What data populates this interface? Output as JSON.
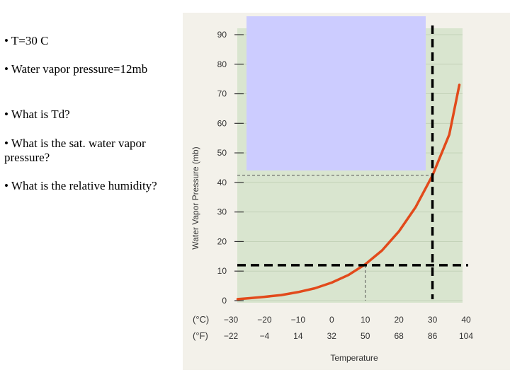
{
  "slide": {
    "bullets": [
      "• T=30 C",
      "• Water vapor pressure=12mb",
      "• What is Td?",
      "• What is the sat. water vapor pressure?",
      "• What is the relative humidity?"
    ]
  },
  "chart_data": {
    "type": "line",
    "ylabel": "Water Vapor Pressure (mb)",
    "xlabel": "Temperature",
    "celsius_unit_label": "(°C)",
    "fahrenheit_unit_label": "(°F)",
    "xlim": [
      -30,
      40
    ],
    "ylim": [
      0,
      90
    ],
    "yticks": [
      "0",
      "10",
      "20",
      "30",
      "40",
      "50",
      "60",
      "70",
      "80",
      "90"
    ],
    "xticks_c": [
      "−30",
      "−20",
      "−10",
      "0",
      "10",
      "20",
      "30",
      "40"
    ],
    "xticks_f": [
      "−22",
      "−4",
      "14",
      "32",
      "50",
      "68",
      "86",
      "104"
    ],
    "series": [
      {
        "x": [
          -28,
          -25,
          -20,
          -15,
          -10,
          -5,
          0,
          5,
          10,
          15,
          20,
          25,
          30,
          35,
          38
        ],
        "y": [
          0.5,
          0.8,
          1.3,
          1.9,
          2.9,
          4.2,
          6.1,
          8.7,
          12.3,
          17.0,
          23.4,
          31.7,
          42.4,
          56.2,
          73
        ]
      }
    ],
    "guide_lines": {
      "horizontal_dashed_y": 12,
      "vertical_dashed_x": 30,
      "thin_dashed_y": 42.4,
      "thin_dashed_x": 10
    },
    "colors": {
      "curve": "#e24a1b",
      "panel": "#d9e5cf",
      "overlay": "#ccccff",
      "guide": "#000000"
    }
  }
}
